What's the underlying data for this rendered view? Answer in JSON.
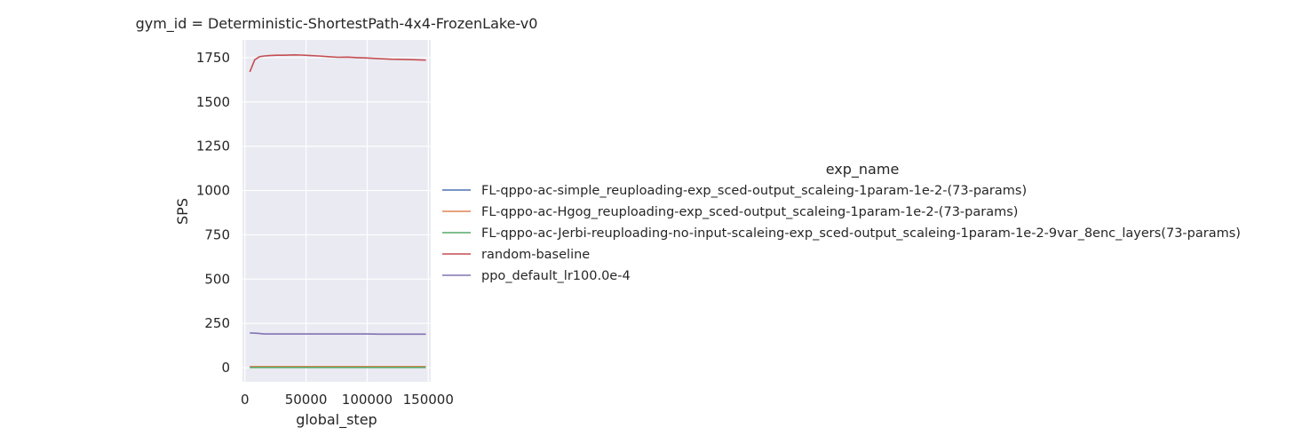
{
  "chart_data": {
    "type": "line",
    "title": "gym_id = Deterministic-ShortestPath-4x4-FrozenLake-v0",
    "xlabel": "global_step",
    "ylabel": "SPS",
    "xlim": [
      -2000,
      152000
    ],
    "ylim": [
      -80,
      1850
    ],
    "xticks": [
      0,
      50000,
      100000,
      150000
    ],
    "yticks": [
      0,
      250,
      500,
      750,
      1000,
      1250,
      1500,
      1750
    ],
    "grid": true,
    "legend": {
      "title": "exp_name",
      "placement": "right"
    },
    "series": [
      {
        "name": "FL-qppo-ac-simple_reuploading-exp_sced-output_scaleing-1param-1e-2-(73-params)",
        "color": "#4c72b0",
        "x": [
          4000,
          10000,
          20000,
          30000,
          40000,
          50000,
          60000,
          70000,
          80000,
          90000,
          100000,
          110000,
          120000,
          130000,
          140000,
          148000
        ],
        "y": [
          4,
          4,
          4,
          4,
          4,
          4,
          4,
          4,
          4,
          4,
          4,
          4,
          4,
          4,
          4,
          4
        ]
      },
      {
        "name": "FL-qppo-ac-Hgog_reuploading-exp_sced-output_scaleing-1param-1e-2-(73-params)",
        "color": "#dd8452",
        "x": [
          4000,
          10000,
          20000,
          30000,
          40000,
          50000,
          60000,
          70000,
          80000,
          90000,
          100000,
          110000,
          120000,
          130000,
          140000,
          148000
        ],
        "y": [
          6,
          6,
          6,
          6,
          6,
          6,
          6,
          6,
          6,
          6,
          6,
          6,
          6,
          6,
          6,
          6
        ]
      },
      {
        "name": "FL-qppo-ac-Jerbi-reuploading-no-input-scaleing-exp_sced-output_scaleing-1param-1e-2-9var_8enc_layers(73-params)",
        "color": "#55a868",
        "x": [
          4000,
          10000,
          20000,
          30000,
          40000,
          50000,
          60000,
          70000,
          80000,
          90000,
          100000,
          110000,
          120000,
          130000,
          140000,
          148000
        ],
        "y": [
          1,
          1,
          1,
          1,
          1,
          1,
          1,
          1,
          1,
          1,
          1,
          1,
          1,
          1,
          1,
          1
        ]
      },
      {
        "name": "random-baseline",
        "color": "#c44e52",
        "x": [
          4000,
          8000,
          12000,
          16000,
          20000,
          26000,
          32000,
          40000,
          46000,
          52000,
          60000,
          68000,
          76000,
          84000,
          92000,
          100000,
          110000,
          120000,
          130000,
          140000,
          148000
        ],
        "y": [
          1670,
          1738,
          1756,
          1760,
          1762,
          1764,
          1764,
          1766,
          1765,
          1763,
          1760,
          1756,
          1752,
          1753,
          1750,
          1748,
          1744,
          1741,
          1740,
          1738,
          1736
        ]
      },
      {
        "name": "ppo_default_lr100.0e-4",
        "color": "#8172b3",
        "x": [
          4000,
          10000,
          16000,
          24000,
          32000,
          40000,
          50000,
          60000,
          70000,
          80000,
          90000,
          100000,
          110000,
          120000,
          130000,
          140000,
          148000
        ],
        "y": [
          196,
          194,
          190,
          190,
          190,
          190,
          190,
          190,
          190,
          190,
          190,
          190,
          189,
          189,
          189,
          189,
          189
        ]
      }
    ]
  }
}
